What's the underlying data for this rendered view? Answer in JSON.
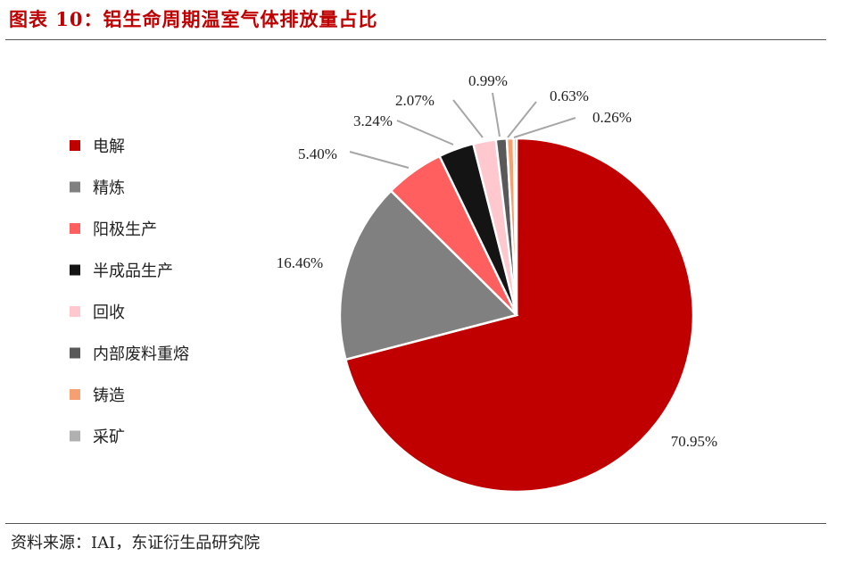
{
  "title": "图表 10：铝生命周期温室气体排放量占比",
  "source": "资料来源：IAI，东证衍生品研究院",
  "chart_data": {
    "type": "pie",
    "slices": [
      {
        "label": "电解",
        "value": 70.95,
        "display": "70.95%",
        "color": "#c00000"
      },
      {
        "label": "精炼",
        "value": 16.46,
        "display": "16.46%",
        "color": "#808080"
      },
      {
        "label": "阳极生产",
        "value": 5.4,
        "display": "5.40%",
        "color": "#ff5f5f"
      },
      {
        "label": "半成品生产",
        "value": 3.24,
        "display": "3.24%",
        "color": "#141414"
      },
      {
        "label": "回收",
        "value": 2.07,
        "display": "2.07%",
        "color": "#ffc7ce"
      },
      {
        "label": "内部废料重熔",
        "value": 0.99,
        "display": "0.99%",
        "color": "#595959"
      },
      {
        "label": "铸造",
        "value": 0.63,
        "display": "0.63%",
        "color": "#f4a070"
      },
      {
        "label": "采矿",
        "value": 0.26,
        "display": "0.26%",
        "color": "#b0b0b0"
      }
    ],
    "start_angle_deg": 0,
    "direction": "clockwise",
    "legend_position": "left"
  }
}
